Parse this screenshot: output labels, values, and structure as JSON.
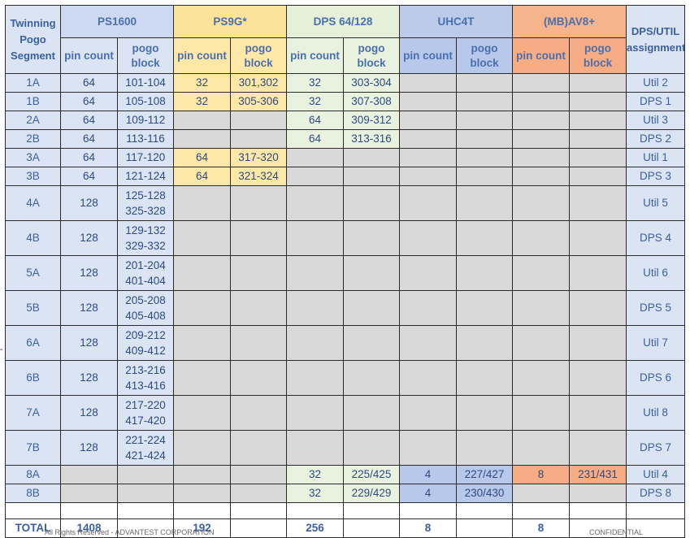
{
  "header": {
    "segment": "Twinning Pogo Segment",
    "groups": [
      "PS1600",
      "PS9G*",
      "DPS 64/128",
      "UHC4T",
      "(MB)AV8+"
    ],
    "util": "DPS/UTIL assignment",
    "sub": [
      "pin count",
      "pogo block",
      "pin count",
      "pogo block",
      "pin count",
      "pogo block",
      "pin count",
      "pogo block",
      "pin count",
      "pogo block"
    ],
    "av8_pin": "pin count"
  },
  "rows": [
    {
      "seg": "1A",
      "ps_pin": "64",
      "ps_blk": "101-104",
      "p9_pin": "32",
      "p9_blk": "301,302",
      "d_pin": "32",
      "d_blk": "303-304",
      "u_pin": "",
      "u_blk": "",
      "a_pin": "",
      "a_blk": "",
      "util": "Util 2"
    },
    {
      "seg": "1B",
      "ps_pin": "64",
      "ps_blk": "105-108",
      "p9_pin": "32",
      "p9_blk": "305-306",
      "d_pin": "32",
      "d_blk": "307-308",
      "u_pin": "",
      "u_blk": "",
      "a_pin": "",
      "a_blk": "",
      "util": "DPS 1"
    },
    {
      "seg": "2A",
      "ps_pin": "64",
      "ps_blk": "109-112",
      "p9_pin": "",
      "p9_blk": "",
      "d_pin": "64",
      "d_blk": "309-312",
      "u_pin": "",
      "u_blk": "",
      "a_pin": "",
      "a_blk": "",
      "util": "Util 3"
    },
    {
      "seg": "2B",
      "ps_pin": "64",
      "ps_blk": "113-116",
      "p9_pin": "",
      "p9_blk": "",
      "d_pin": "64",
      "d_blk": "313-316",
      "u_pin": "",
      "u_blk": "",
      "a_pin": "",
      "a_blk": "",
      "util": "DPS 2"
    },
    {
      "seg": "3A",
      "ps_pin": "64",
      "ps_blk": "117-120",
      "p9_pin": "64",
      "p9_blk": "317-320",
      "d_pin": "",
      "d_blk": "",
      "u_pin": "",
      "u_blk": "",
      "a_pin": "",
      "a_blk": "",
      "util": "Util 1"
    },
    {
      "seg": "3B",
      "ps_pin": "64",
      "ps_blk": "121-124",
      "p9_pin": "64",
      "p9_blk": "321-324",
      "d_pin": "",
      "d_blk": "",
      "u_pin": "",
      "u_blk": "",
      "a_pin": "",
      "a_blk": "",
      "util": "DPS 3"
    },
    {
      "seg": "4A",
      "ps_pin": "128",
      "ps_blk1": "125-128",
      "ps_blk2": "325-328",
      "util": "Util 5"
    },
    {
      "seg": "4B",
      "ps_pin": "128",
      "ps_blk1": "129-132",
      "ps_blk2": "329-332",
      "util": "DPS 4"
    },
    {
      "seg": "5A",
      "ps_pin": "128",
      "ps_blk1": "201-204",
      "ps_blk2": "401-404",
      "util": "Util 6"
    },
    {
      "seg": "5B",
      "ps_pin": "128",
      "ps_blk1": "205-208",
      "ps_blk2": "405-408",
      "util": "DPS 5"
    },
    {
      "seg": "6A",
      "ps_pin": "128",
      "ps_blk1": "209-212",
      "ps_blk2": "409-412",
      "util": "Util 7"
    },
    {
      "seg": "6B",
      "ps_pin": "128",
      "ps_blk1": "213-216",
      "ps_blk2": "413-416",
      "util": "DPS 6"
    },
    {
      "seg": "7A",
      "ps_pin": "128",
      "ps_blk1": "217-220",
      "ps_blk2": "417-420",
      "util": "Util 8"
    },
    {
      "seg": "7B",
      "ps_pin": "128",
      "ps_blk1": "221-224",
      "ps_blk2": "421-424",
      "util": "DPS 7"
    },
    {
      "seg": "8A",
      "d_pin": "32",
      "d_blk": "225/425",
      "u_pin": "4",
      "u_blk": "227/427",
      "a_pin": "8",
      "a_blk": "231/431",
      "util": "Util 4"
    },
    {
      "seg": "8B",
      "d_pin": "32",
      "d_blk": "229/429",
      "u_pin": "4",
      "u_blk": "230/430",
      "util": "DPS 8"
    }
  ],
  "total": {
    "label": "TOTAL",
    "ps": "1408",
    "p9": "192",
    "d": "256",
    "u": "8",
    "a": "8"
  },
  "footer": {
    "left": "All Rights Reserved - ADVANTEST CORPORATION",
    "right": "CONFIDENTIAL"
  }
}
